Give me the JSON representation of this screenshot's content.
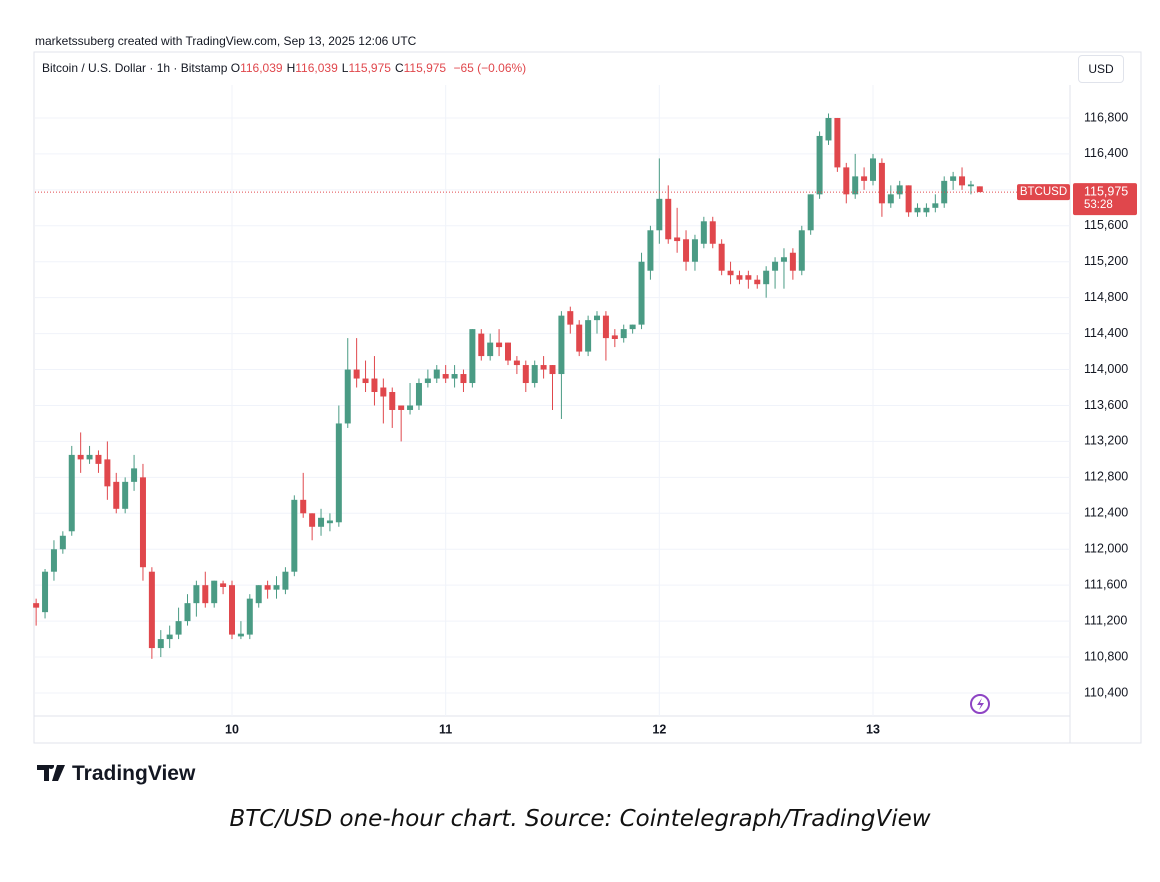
{
  "header": {
    "credit": "marketssuberg created with TradingView.com, Sep 13, 2025 12:06 UTC",
    "symbol": "Bitcoin / U.S. Dollar · 1h · Bitstamp",
    "ohlc": [
      {
        "key": "O",
        "value": "116,039"
      },
      {
        "key": "H",
        "value": "116,039"
      },
      {
        "key": "L",
        "value": "115,975"
      },
      {
        "key": "C",
        "value": "115,975"
      }
    ],
    "change": "−65 (−0.06%)",
    "currency": "USD"
  },
  "chart_data": {
    "type": "candlestick",
    "up_color": "#4a9b84",
    "down_color": "#e0474c",
    "grid": true,
    "xlim": [
      9.078,
      13.922
    ],
    "xticks": [
      10,
      11,
      12,
      13
    ],
    "ylim": [
      110144,
      117167
    ],
    "yticks": [
      {
        "value": 110400,
        "label": "110,400"
      },
      {
        "value": 110800,
        "label": "110,800"
      },
      {
        "value": 111200,
        "label": "111,200"
      },
      {
        "value": 111600,
        "label": "111,600"
      },
      {
        "value": 112000,
        "label": "112,000"
      },
      {
        "value": 112400,
        "label": "112,400"
      },
      {
        "value": 112800,
        "label": "112,800"
      },
      {
        "value": 113200,
        "label": "113,200"
      },
      {
        "value": 113600,
        "label": "113,600"
      },
      {
        "value": 114000,
        "label": "114,000"
      },
      {
        "value": 114400,
        "label": "114,400"
      },
      {
        "value": 114800,
        "label": "114,800"
      },
      {
        "value": 115200,
        "label": "115,200"
      },
      {
        "value": 115600,
        "label": "115,600"
      },
      {
        "value": 116000,
        "label": "116,000"
      },
      {
        "value": 116400,
        "label": "116,400"
      },
      {
        "value": 116800,
        "label": "116,800"
      }
    ],
    "x": [
      9.0833,
      9.125,
      9.1667,
      9.2083,
      9.25,
      9.2917,
      9.3333,
      9.375,
      9.4167,
      9.4583,
      9.5,
      9.5417,
      9.5833,
      9.625,
      9.6667,
      9.7083,
      9.75,
      9.7917,
      9.8333,
      9.875,
      9.9167,
      9.9583,
      10,
      10.0417,
      10.0833,
      10.125,
      10.1667,
      10.2083,
      10.25,
      10.2917,
      10.3333,
      10.375,
      10.4167,
      10.4583,
      10.5,
      10.5417,
      10.5833,
      10.625,
      10.6667,
      10.7083,
      10.75,
      10.7917,
      10.8333,
      10.875,
      10.9167,
      10.9583,
      11,
      11.0417,
      11.0833,
      11.125,
      11.1667,
      11.2083,
      11.25,
      11.2917,
      11.3333,
      11.375,
      11.4167,
      11.4583,
      11.5,
      11.5417,
      11.5833,
      11.625,
      11.6667,
      11.7083,
      11.75,
      11.7917,
      11.8333,
      11.875,
      11.9167,
      11.9583,
      12,
      12.0417,
      12.0833,
      12.125,
      12.1667,
      12.2083,
      12.25,
      12.2917,
      12.3333,
      12.375,
      12.4167,
      12.4583,
      12.5,
      12.5417,
      12.5833,
      12.625,
      12.6667,
      12.7083,
      12.75,
      12.7917,
      12.8333,
      12.875,
      12.9167,
      12.9583,
      13,
      13.0417,
      13.0833,
      13.125,
      13.1667,
      13.2083,
      13.25,
      13.2917,
      13.3333,
      13.375,
      13.4167,
      13.4583,
      13.5
    ],
    "open": [
      111400,
      111300,
      111750,
      112000,
      112200,
      113050,
      113000,
      113050,
      113000,
      112750,
      112450,
      112750,
      112800,
      111750,
      110900,
      111000,
      111050,
      111200,
      111400,
      111600,
      111400,
      111620,
      111600,
      111030,
      111050,
      111400,
      111600,
      111550,
      111550,
      111750,
      112550,
      112400,
      112250,
      112290,
      112300,
      113400,
      114000,
      113900,
      113900,
      113800,
      113750,
      113600,
      113550,
      113600,
      113850,
      113900,
      113950,
      113900,
      113950,
      113850,
      114400,
      114150,
      114300,
      114300,
      114100,
      114050,
      113850,
      114050,
      114050,
      113950,
      114650,
      114500,
      114200,
      114550,
      114600,
      114380,
      114350,
      114450,
      114500,
      115100,
      115550,
      115900,
      115470,
      115450,
      115200,
      115400,
      115650,
      115400,
      115100,
      115050,
      115050,
      115000,
      114950,
      115100,
      115200,
      115300,
      115100,
      115550,
      115950,
      116550,
      116800,
      116250,
      115950,
      116150,
      116100,
      116300,
      115850,
      115950,
      116050,
      115750,
      115750,
      115800,
      115850,
      116100,
      116150,
      116040,
      116039
    ],
    "high": [
      111450,
      111780,
      112100,
      112200,
      113150,
      113300,
      113150,
      113100,
      113200,
      112850,
      112800,
      113050,
      112950,
      111800,
      111100,
      111150,
      111350,
      111500,
      111650,
      111750,
      111650,
      111650,
      111650,
      111200,
      111500,
      111600,
      111650,
      111700,
      111800,
      112600,
      112850,
      112400,
      112450,
      112400,
      113600,
      114350,
      114350,
      114100,
      114150,
      113900,
      113800,
      113600,
      113850,
      113900,
      114000,
      114050,
      114050,
      114050,
      114000,
      114450,
      114450,
      114400,
      114450,
      114300,
      114150,
      114100,
      114100,
      114150,
      114050,
      114650,
      114700,
      114550,
      114600,
      114650,
      114650,
      114450,
      114500,
      114500,
      115300,
      115600,
      116350,
      116050,
      115800,
      115550,
      115500,
      115700,
      115700,
      115450,
      115200,
      115100,
      115100,
      115050,
      115150,
      115250,
      115350,
      115350,
      115600,
      115950,
      116650,
      116850,
      116800,
      116300,
      116400,
      116250,
      116400,
      116350,
      116050,
      116100,
      116050,
      115850,
      115850,
      115950,
      116150,
      116200,
      116250,
      116100,
      116039
    ],
    "low": [
      111150,
      111230,
      111650,
      111950,
      112150,
      112850,
      112950,
      112850,
      112550,
      112400,
      112400,
      112650,
      111650,
      110780,
      110800,
      110900,
      111000,
      111150,
      111250,
      111350,
      111350,
      111500,
      111000,
      111000,
      111000,
      111350,
      111450,
      111450,
      111500,
      111700,
      112350,
      112100,
      112150,
      112200,
      112250,
      113350,
      113800,
      113750,
      113600,
      113400,
      113350,
      113200,
      113500,
      113550,
      113800,
      113850,
      113850,
      113800,
      113750,
      113800,
      114100,
      114100,
      114150,
      114050,
      113950,
      113750,
      113800,
      113900,
      113550,
      113450,
      114400,
      114150,
      114150,
      114400,
      114100,
      114250,
      114300,
      114400,
      114450,
      115000,
      115400,
      115400,
      115300,
      115100,
      115100,
      115350,
      115350,
      115050,
      114950,
      114950,
      114900,
      114900,
      114800,
      114900,
      114900,
      115000,
      115050,
      115500,
      115900,
      116500,
      116200,
      115850,
      115900,
      116000,
      116050,
      115700,
      115800,
      115900,
      115700,
      115700,
      115700,
      115750,
      115800,
      116000,
      116000,
      115950,
      115975
    ],
    "close": [
      111350,
      111750,
      112000,
      112150,
      113050,
      113000,
      113050,
      112950,
      112700,
      112450,
      112750,
      112900,
      111800,
      110900,
      111000,
      111050,
      111200,
      111400,
      111600,
      111400,
      111650,
      111580,
      111050,
      111060,
      111450,
      111600,
      111550,
      111600,
      111750,
      112550,
      112400,
      112250,
      112350,
      112320,
      113400,
      114000,
      113900,
      113850,
      113750,
      113700,
      113550,
      113550,
      113600,
      113850,
      113900,
      114000,
      113900,
      113950,
      113850,
      114450,
      114150,
      114300,
      114250,
      114100,
      114050,
      113850,
      114050,
      114000,
      113950,
      114600,
      114500,
      114200,
      114550,
      114600,
      114350,
      114340,
      114450,
      114500,
      115200,
      115550,
      115900,
      115450,
      115430,
      115200,
      115450,
      115650,
      115400,
      115100,
      115050,
      115000,
      115000,
      114950,
      115100,
      115200,
      115250,
      115100,
      115550,
      115950,
      116600,
      116800,
      116250,
      115950,
      116150,
      116100,
      116350,
      115850,
      115950,
      116050,
      115750,
      115800,
      115800,
      115850,
      116100,
      116150,
      116050,
      116060,
      115975
    ],
    "last_price": {
      "value": 115975,
      "label": "115,975"
    },
    "symbol_tag": "BTCUSD",
    "countdown": "53:28"
  },
  "footer": {
    "logo": "TradingView",
    "caption": "BTC/USD one-hour chart. Source: Cointelegraph/TradingView"
  }
}
